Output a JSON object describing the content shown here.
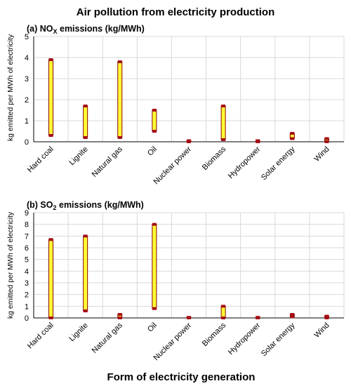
{
  "figure": {
    "title": "Air pollution from electricity production",
    "xlabel": "Form of electricity generation",
    "bar_color": "#ffff33",
    "bar_edge_color": "#8b0000",
    "cap_color": "#a50f15",
    "grid_color": "#d9d9d9"
  },
  "chart_data": [
    {
      "type": "bar",
      "panel": "a",
      "title_prefix": "(a) NO",
      "title_sub": "X",
      "title_suffix": " emissions (kg/MWh)",
      "ylabel": "kg emitted per MWh of electricity",
      "ylim": [
        0,
        5
      ],
      "yticks": [
        "0",
        "1",
        "2",
        "3",
        "4",
        "5"
      ],
      "grid": true,
      "categories": [
        "Hard coal",
        "Lignite",
        "Natural gas",
        "Oil",
        "Nuclear power",
        "Biomass",
        "Hydropower",
        "Solar energy",
        "Wind"
      ],
      "ranges": [
        [
          0.3,
          3.9
        ],
        [
          0.2,
          1.7
        ],
        [
          0.2,
          3.8
        ],
        [
          0.5,
          1.5
        ],
        [
          0.0,
          0.05
        ],
        [
          0.1,
          1.7
        ],
        [
          0.0,
          0.05
        ],
        [
          0.15,
          0.4
        ],
        [
          0.0,
          0.15
        ]
      ]
    },
    {
      "type": "bar",
      "panel": "b",
      "title_prefix": "(b) SO",
      "title_sub": "2",
      "title_suffix": " emissions (kg/MWh)",
      "ylabel": "kg emitted per MWh of electricity",
      "ylim": [
        0,
        9
      ],
      "yticks": [
        "0",
        "1",
        "2",
        "3",
        "4",
        "5",
        "6",
        "7",
        "8",
        "9"
      ],
      "grid": true,
      "categories": [
        "Hard coal",
        "Lignite",
        "Natural gas",
        "Oil",
        "Nuclear power",
        "Biomass",
        "Hydropower",
        "Solar energy",
        "Wind"
      ],
      "ranges": [
        [
          0.0,
          6.7
        ],
        [
          0.6,
          7.0
        ],
        [
          0.0,
          0.3
        ],
        [
          0.8,
          8.0
        ],
        [
          0.0,
          0.05
        ],
        [
          0.0,
          1.0
        ],
        [
          0.0,
          0.05
        ],
        [
          0.1,
          0.3
        ],
        [
          0.0,
          0.15
        ]
      ]
    }
  ]
}
